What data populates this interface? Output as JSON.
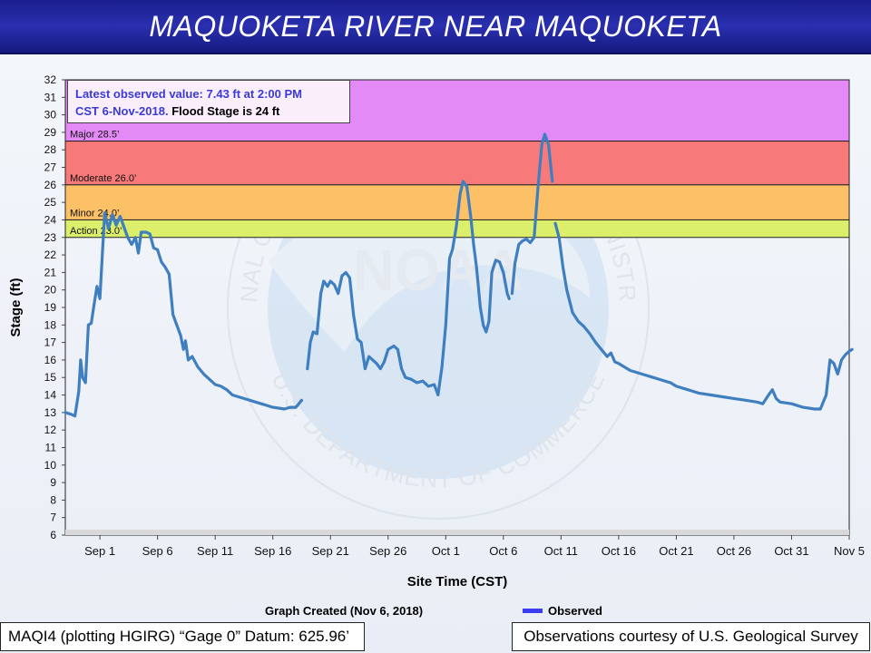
{
  "title": "MAQUOKETA RIVER NEAR MAQUOKETA",
  "latest": {
    "part1": "Latest observed value: 7.43 ft at 2:00 PM",
    "part2": "CST 6-Nov-2018.",
    "part3": " Flood Stage is 24 ft"
  },
  "footer": {
    "graph_created": "Graph Created (Nov 6, 2018)",
    "legend_observed": "Observed",
    "datum": "MAQI4 (plotting HGIRG) “Gage 0” Datum: 625.96’",
    "courtesy": "Observations courtesy of U.S. Geological Survey"
  },
  "colors": {
    "major": "#e48af7",
    "moderate": "#f77979",
    "minor": "#fcc067",
    "action": "#dcef6a",
    "line": "#3f7fc0",
    "legend_line": "#3b3bf0"
  },
  "watermark": {
    "ring_text_top": "NATIONAL OCEANIC AND ATMOSPHERIC ADMINISTRATION",
    "ring_text_bottom": "U.S. DEPARTMENT OF COMMERCE",
    "logo_text": "NOAA"
  },
  "chart_data": {
    "type": "line",
    "title": "MAQUOKETA RIVER NEAR MAQUOKETA",
    "xlabel": "Site Time (CST)",
    "ylabel": "Stage (ft)",
    "ylim": [
      6,
      32
    ],
    "xlim": [
      "2018-08-29",
      "2018-11-05"
    ],
    "x_ticks": [
      "Sep 1",
      "Sep 6",
      "Sep 11",
      "Sep 16",
      "Sep 21",
      "Sep 26",
      "Oct 1",
      "Oct 6",
      "Oct 11",
      "Oct 16",
      "Oct 21",
      "Oct 26",
      "Oct 31",
      "Nov 5"
    ],
    "x_tick_dates": [
      "2018-09-01",
      "2018-09-06",
      "2018-09-11",
      "2018-09-16",
      "2018-09-21",
      "2018-09-26",
      "2018-10-01",
      "2018-10-06",
      "2018-10-11",
      "2018-10-16",
      "2018-10-21",
      "2018-10-26",
      "2018-10-31",
      "2018-11-05"
    ],
    "y_ticks": [
      6,
      7,
      8,
      9,
      10,
      11,
      12,
      13,
      14,
      15,
      16,
      17,
      18,
      19,
      20,
      21,
      22,
      23,
      24,
      25,
      26,
      27,
      28,
      29,
      30,
      31,
      32
    ],
    "grid": false,
    "legend": "bottom",
    "flood_categories": [
      {
        "label": "Major 28.5’",
        "from": 28.5,
        "to": 32
      },
      {
        "label": "Moderate 26.0’",
        "from": 26.0,
        "to": 28.5
      },
      {
        "label": "Minor 24.0’",
        "from": 24.0,
        "to": 26.0
      },
      {
        "label": "Action 23.0’",
        "from": 23.0,
        "to": 24.0
      }
    ],
    "series": [
      {
        "name": "Observed",
        "segments": [
          [
            [
              "2018-08-29T00:00",
              13.0
            ],
            [
              "2018-08-29T12:00",
              12.9
            ],
            [
              "2018-08-29T20:00",
              12.8
            ],
            [
              "2018-08-30T04:00",
              14.2
            ],
            [
              "2018-08-30T08:00",
              16.0
            ],
            [
              "2018-08-30T12:00",
              15.0
            ],
            [
              "2018-08-30T18:00",
              14.7
            ],
            [
              "2018-08-31T00:00",
              18.0
            ],
            [
              "2018-08-31T06:00",
              18.1
            ],
            [
              "2018-08-31T12:00",
              19.2
            ],
            [
              "2018-08-31T18:00",
              20.2
            ],
            [
              "2018-09-01T00:00",
              19.5
            ],
            [
              "2018-09-01T06:00",
              22.5
            ],
            [
              "2018-09-01T10:00",
              24.4
            ],
            [
              "2018-09-01T18:00",
              23.5
            ],
            [
              "2018-09-02T02:00",
              24.3
            ],
            [
              "2018-09-02T10:00",
              23.7
            ],
            [
              "2018-09-02T18:00",
              24.2
            ],
            [
              "2018-09-03T02:00",
              23.6
            ],
            [
              "2018-09-03T10:00",
              23.0
            ],
            [
              "2018-09-03T18:00",
              22.6
            ],
            [
              "2018-09-04T02:00",
              23.0
            ],
            [
              "2018-09-04T08:00",
              22.1
            ],
            [
              "2018-09-04T14:00",
              23.3
            ],
            [
              "2018-09-05T00:00",
              23.3
            ],
            [
              "2018-09-05T08:00",
              23.2
            ],
            [
              "2018-09-05T16:00",
              22.4
            ],
            [
              "2018-09-06T00:00",
              22.3
            ],
            [
              "2018-09-06T08:00",
              21.6
            ],
            [
              "2018-09-06T16:00",
              21.3
            ],
            [
              "2018-09-07T00:00",
              20.9
            ],
            [
              "2018-09-07T08:00",
              18.6
            ],
            [
              "2018-09-07T16:00",
              18.0
            ],
            [
              "2018-09-08T00:00",
              17.4
            ],
            [
              "2018-09-08T06:00",
              16.6
            ],
            [
              "2018-09-08T10:00",
              17.1
            ],
            [
              "2018-09-08T16:00",
              16.0
            ],
            [
              "2018-09-09T00:00",
              16.2
            ],
            [
              "2018-09-09T12:00",
              15.6
            ],
            [
              "2018-09-10T00:00",
              15.2
            ],
            [
              "2018-09-10T12:00",
              14.9
            ],
            [
              "2018-09-11T00:00",
              14.6
            ],
            [
              "2018-09-11T12:00",
              14.5
            ],
            [
              "2018-09-12T00:00",
              14.3
            ],
            [
              "2018-09-12T12:00",
              14.0
            ],
            [
              "2018-09-13T00:00",
              13.9
            ],
            [
              "2018-09-13T12:00",
              13.8
            ],
            [
              "2018-09-14T00:00",
              13.7
            ],
            [
              "2018-09-14T12:00",
              13.6
            ],
            [
              "2018-09-15T00:00",
              13.5
            ],
            [
              "2018-09-15T12:00",
              13.4
            ],
            [
              "2018-09-16T00:00",
              13.3
            ],
            [
              "2018-09-16T12:00",
              13.25
            ],
            [
              "2018-09-17T00:00",
              13.2
            ],
            [
              "2018-09-17T12:00",
              13.3
            ],
            [
              "2018-09-18T00:00",
              13.3
            ],
            [
              "2018-09-18T12:00",
              13.7
            ]
          ],
          [
            [
              "2018-09-19T00:00",
              15.5
            ],
            [
              "2018-09-19T06:00",
              17.0
            ],
            [
              "2018-09-19T12:00",
              17.6
            ],
            [
              "2018-09-19T20:00",
              17.5
            ],
            [
              "2018-09-20T04:00",
              19.8
            ],
            [
              "2018-09-20T10:00",
              20.5
            ],
            [
              "2018-09-20T18:00",
              20.2
            ],
            [
              "2018-09-21T00:00",
              20.5
            ],
            [
              "2018-09-21T08:00",
              20.3
            ],
            [
              "2018-09-21T16:00",
              19.8
            ],
            [
              "2018-09-22T00:00",
              20.8
            ],
            [
              "2018-09-22T08:00",
              21.0
            ],
            [
              "2018-09-22T16:00",
              20.7
            ],
            [
              "2018-09-23T00:00",
              18.6
            ],
            [
              "2018-09-23T08:00",
              17.2
            ],
            [
              "2018-09-23T16:00",
              17.0
            ],
            [
              "2018-09-24T00:00",
              15.5
            ],
            [
              "2018-09-24T08:00",
              16.2
            ],
            [
              "2018-09-24T16:00",
              16.0
            ],
            [
              "2018-09-25T00:00",
              15.8
            ],
            [
              "2018-09-25T08:00",
              15.5
            ],
            [
              "2018-09-25T16:00",
              15.9
            ],
            [
              "2018-09-26T00:00",
              16.6
            ],
            [
              "2018-09-26T12:00",
              16.8
            ],
            [
              "2018-09-26T20:00",
              16.6
            ],
            [
              "2018-09-27T04:00",
              15.5
            ],
            [
              "2018-09-27T12:00",
              15.0
            ],
            [
              "2018-09-28T00:00",
              14.9
            ],
            [
              "2018-09-28T12:00",
              14.7
            ],
            [
              "2018-09-29T00:00",
              14.8
            ],
            [
              "2018-09-29T12:00",
              14.5
            ],
            [
              "2018-09-30T00:00",
              14.6
            ],
            [
              "2018-09-30T08:00",
              14.0
            ],
            [
              "2018-09-30T16:00",
              15.6
            ],
            [
              "2018-10-01T00:00",
              18.0
            ],
            [
              "2018-10-01T08:00",
              21.8
            ],
            [
              "2018-10-01T14:00",
              22.3
            ],
            [
              "2018-10-01T22:00",
              23.6
            ],
            [
              "2018-10-02T06:00",
              25.5
            ],
            [
              "2018-10-02T12:00",
              26.2
            ],
            [
              "2018-10-02T20:00",
              25.9
            ],
            [
              "2018-10-03T04:00",
              24.2
            ],
            [
              "2018-10-03T10:00",
              22.6
            ],
            [
              "2018-10-03T16:00",
              21.3
            ],
            [
              "2018-10-04T00:00",
              19.0
            ],
            [
              "2018-10-04T06:00",
              18.0
            ],
            [
              "2018-10-04T12:00",
              17.6
            ],
            [
              "2018-10-04T18:00",
              18.2
            ],
            [
              "2018-10-05T00:00",
              21.0
            ],
            [
              "2018-10-05T08:00",
              21.7
            ],
            [
              "2018-10-05T16:00",
              21.6
            ],
            [
              "2018-10-06T00:00",
              21.0
            ],
            [
              "2018-10-06T08:00",
              19.8
            ],
            [
              "2018-10-06T12:00",
              19.5
            ]
          ],
          [
            [
              "2018-10-06T18:00",
              19.8
            ],
            [
              "2018-10-07T00:00",
              21.5
            ],
            [
              "2018-10-07T08:00",
              22.6
            ],
            [
              "2018-10-07T16:00",
              22.8
            ],
            [
              "2018-10-08T00:00",
              22.9
            ],
            [
              "2018-10-08T08:00",
              22.7
            ],
            [
              "2018-10-08T16:00",
              23.0
            ],
            [
              "2018-10-09T00:00",
              25.8
            ],
            [
              "2018-10-09T08:00",
              28.3
            ],
            [
              "2018-10-09T14:00",
              28.9
            ],
            [
              "2018-10-09T22:00",
              28.3
            ],
            [
              "2018-10-10T06:00",
              26.2
            ]
          ],
          [
            [
              "2018-10-10T12:00",
              23.8
            ],
            [
              "2018-10-10T20:00",
              23.0
            ],
            [
              "2018-10-11T04:00",
              21.3
            ],
            [
              "2018-10-11T12:00",
              20.0
            ],
            [
              "2018-10-12T00:00",
              18.7
            ],
            [
              "2018-10-12T12:00",
              18.2
            ],
            [
              "2018-10-13T00:00",
              17.9
            ],
            [
              "2018-10-13T12:00",
              17.5
            ],
            [
              "2018-10-14T00:00",
              17.0
            ],
            [
              "2018-10-14T12:00",
              16.6
            ],
            [
              "2018-10-15T00:00",
              16.2
            ],
            [
              "2018-10-15T08:00",
              16.4
            ],
            [
              "2018-10-15T16:00",
              15.9
            ],
            [
              "2018-10-16T00:00",
              15.8
            ],
            [
              "2018-10-16T12:00",
              15.6
            ],
            [
              "2018-10-17T00:00",
              15.4
            ],
            [
              "2018-10-17T12:00",
              15.3
            ],
            [
              "2018-10-18T00:00",
              15.2
            ],
            [
              "2018-10-19T00:00",
              15.0
            ],
            [
              "2018-10-20T00:00",
              14.8
            ],
            [
              "2018-10-20T12:00",
              14.7
            ],
            [
              "2018-10-21T00:00",
              14.5
            ],
            [
              "2018-10-21T12:00",
              14.4
            ],
            [
              "2018-10-22T00:00",
              14.3
            ],
            [
              "2018-10-23T00:00",
              14.1
            ],
            [
              "2018-10-24T00:00",
              14.0
            ],
            [
              "2018-10-25T00:00",
              13.9
            ],
            [
              "2018-10-26T00:00",
              13.8
            ],
            [
              "2018-10-27T00:00",
              13.7
            ],
            [
              "2018-10-28T00:00",
              13.6
            ],
            [
              "2018-10-28T12:00",
              13.5
            ],
            [
              "2018-10-29T00:00",
              14.0
            ],
            [
              "2018-10-29T08:00",
              14.3
            ],
            [
              "2018-10-29T16:00",
              13.8
            ],
            [
              "2018-10-30T00:00",
              13.6
            ],
            [
              "2018-10-31T00:00",
              13.5
            ],
            [
              "2018-11-01T00:00",
              13.3
            ],
            [
              "2018-11-02T00:00",
              13.2
            ],
            [
              "2018-11-02T12:00",
              13.2
            ],
            [
              "2018-11-03T00:00",
              14.0
            ],
            [
              "2018-11-03T08:00",
              16.0
            ],
            [
              "2018-11-03T16:00",
              15.8
            ],
            [
              "2018-11-04T00:00",
              15.2
            ],
            [
              "2018-11-04T08:00",
              16.0
            ],
            [
              "2018-11-04T16:00",
              16.3
            ],
            [
              "2018-11-05T00:00",
              16.5
            ],
            [
              "2018-11-05T06:00",
              16.6
            ]
          ]
        ]
      }
    ]
  }
}
